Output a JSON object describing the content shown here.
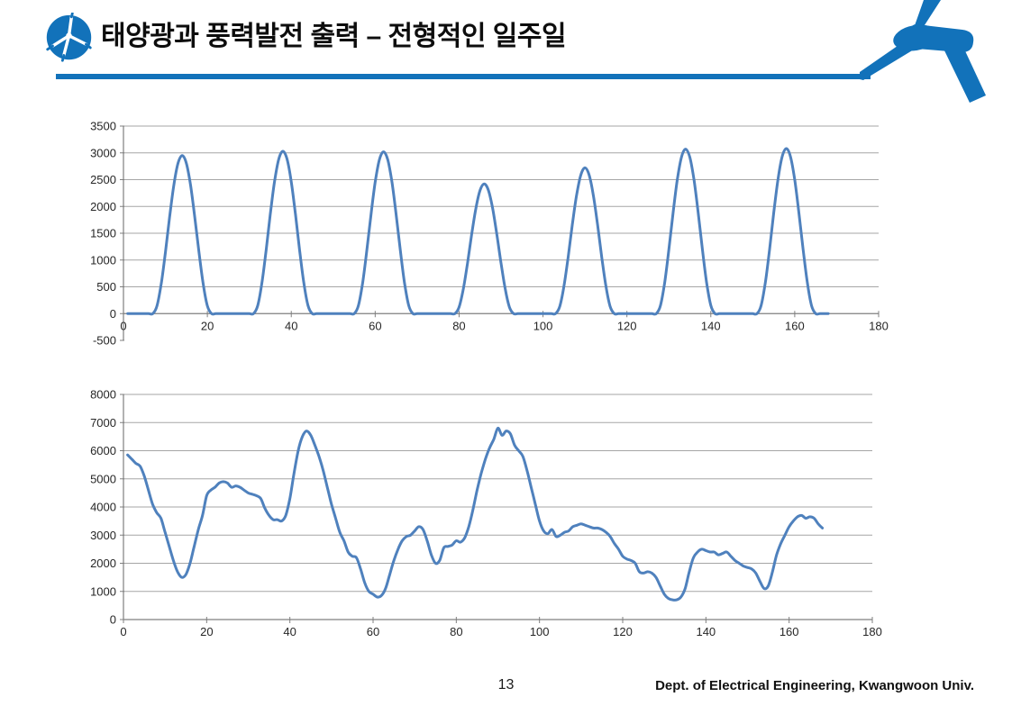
{
  "slide": {
    "title": "태양광과 풍력발전 출력 – 전형적인 일주일",
    "page_number": "13",
    "affiliation": "Dept. of Electrical Engineering, Kwangwoon Univ.",
    "accent_color": "#1272BA"
  },
  "icons": {
    "logo": "wind-turbine-logo-icon",
    "corner_graphic": "wind-turbine-graphic"
  },
  "chart_data": [
    {
      "type": "line",
      "name": "solar-pv-output-typical-week",
      "x_first": 1,
      "x_step": 1,
      "xlim": [
        0,
        180
      ],
      "ylim": [
        -500,
        3500
      ],
      "x_ticks": [
        0,
        20,
        40,
        60,
        80,
        100,
        120,
        140,
        160,
        180
      ],
      "y_ticks": [
        -500,
        0,
        500,
        1000,
        1500,
        2000,
        2500,
        3000,
        3500
      ],
      "axis_cross_y": 0,
      "grid": true,
      "legend": false,
      "line_color": "#4F81BD",
      "grid_color": "#A6A6A6",
      "axis_color": "#7F7F7F",
      "label_color": "#262626",
      "values": [
        0,
        0,
        0,
        0,
        0,
        0,
        0,
        146,
        555,
        1147,
        1803,
        2395,
        2804,
        2950,
        2804,
        2395,
        1803,
        1147,
        555,
        146,
        0,
        0,
        0,
        0,
        0,
        0,
        0,
        0,
        0,
        0,
        0,
        150,
        570,
        1178,
        1852,
        2459,
        2880,
        3030,
        2880,
        2459,
        1852,
        1178,
        570,
        150,
        0,
        0,
        0,
        0,
        0,
        0,
        0,
        0,
        0,
        0,
        0,
        149,
        569,
        1174,
        1846,
        2451,
        2871,
        3020,
        2871,
        2451,
        1846,
        1174,
        569,
        149,
        0,
        0,
        0,
        0,
        0,
        0,
        0,
        0,
        0,
        0,
        0,
        120,
        456,
        941,
        1479,
        1964,
        2300,
        2420,
        2300,
        1964,
        1479,
        941,
        456,
        120,
        0,
        0,
        0,
        0,
        0,
        0,
        0,
        0,
        0,
        0,
        0,
        135,
        512,
        1057,
        1663,
        2208,
        2585,
        2720,
        2585,
        2208,
        1663,
        1057,
        512,
        135,
        0,
        0,
        0,
        0,
        0,
        0,
        0,
        0,
        0,
        0,
        0,
        152,
        578,
        1193,
        1877,
        2492,
        2918,
        3070,
        2918,
        2492,
        1877,
        1193,
        578,
        152,
        0,
        0,
        0,
        0,
        0,
        0,
        0,
        0,
        0,
        0,
        0,
        152,
        580,
        1197,
        1883,
        2500,
        2927,
        3080,
        2927,
        2500,
        1883,
        1197,
        580,
        152,
        0,
        0,
        0,
        0
      ]
    },
    {
      "type": "line",
      "name": "wind-power-output-typical-week",
      "x_first": 1,
      "x_step": 1,
      "xlim": [
        0,
        180
      ],
      "ylim": [
        0,
        8000
      ],
      "x_ticks": [
        0,
        20,
        40,
        60,
        80,
        100,
        120,
        140,
        160,
        180
      ],
      "y_ticks": [
        0,
        1000,
        2000,
        3000,
        4000,
        5000,
        6000,
        7000,
        8000
      ],
      "axis_cross_y": 0,
      "grid": true,
      "legend": false,
      "line_color": "#4F81BD",
      "grid_color": "#A6A6A6",
      "axis_color": "#7F7F7F",
      "label_color": "#262626",
      "values": [
        5850,
        5700,
        5550,
        5450,
        5100,
        4600,
        4100,
        3800,
        3600,
        3100,
        2600,
        2100,
        1700,
        1500,
        1600,
        2000,
        2600,
        3200,
        3700,
        4400,
        4600,
        4700,
        4850,
        4900,
        4850,
        4700,
        4750,
        4700,
        4600,
        4500,
        4450,
        4400,
        4300,
        3950,
        3700,
        3550,
        3550,
        3500,
        3700,
        4300,
        5200,
        6000,
        6500,
        6700,
        6550,
        6200,
        5800,
        5300,
        4700,
        4100,
        3600,
        3100,
        2800,
        2400,
        2250,
        2200,
        1800,
        1300,
        1000,
        900,
        800,
        850,
        1100,
        1600,
        2100,
        2500,
        2800,
        2950,
        3000,
        3150,
        3300,
        3200,
        2800,
        2300,
        2000,
        2100,
        2550,
        2600,
        2650,
        2800,
        2750,
        2900,
        3300,
        3900,
        4600,
        5200,
        5700,
        6100,
        6400,
        6800,
        6550,
        6700,
        6600,
        6200,
        6000,
        5800,
        5300,
        4700,
        4100,
        3500,
        3150,
        3050,
        3200,
        2950,
        3000,
        3100,
        3150,
        3300,
        3350,
        3400,
        3350,
        3300,
        3250,
        3250,
        3200,
        3100,
        2950,
        2700,
        2500,
        2250,
        2150,
        2100,
        2000,
        1700,
        1650,
        1700,
        1650,
        1500,
        1200,
        900,
        750,
        700,
        700,
        800,
        1100,
        1700,
        2200,
        2400,
        2500,
        2450,
        2400,
        2400,
        2300,
        2350,
        2400,
        2250,
        2100,
        2000,
        1900,
        1850,
        1800,
        1650,
        1350,
        1100,
        1200,
        1700,
        2300,
        2700,
        3000,
        3300,
        3500,
        3650,
        3700,
        3600,
        3650,
        3600,
        3400,
        3250
      ]
    }
  ]
}
